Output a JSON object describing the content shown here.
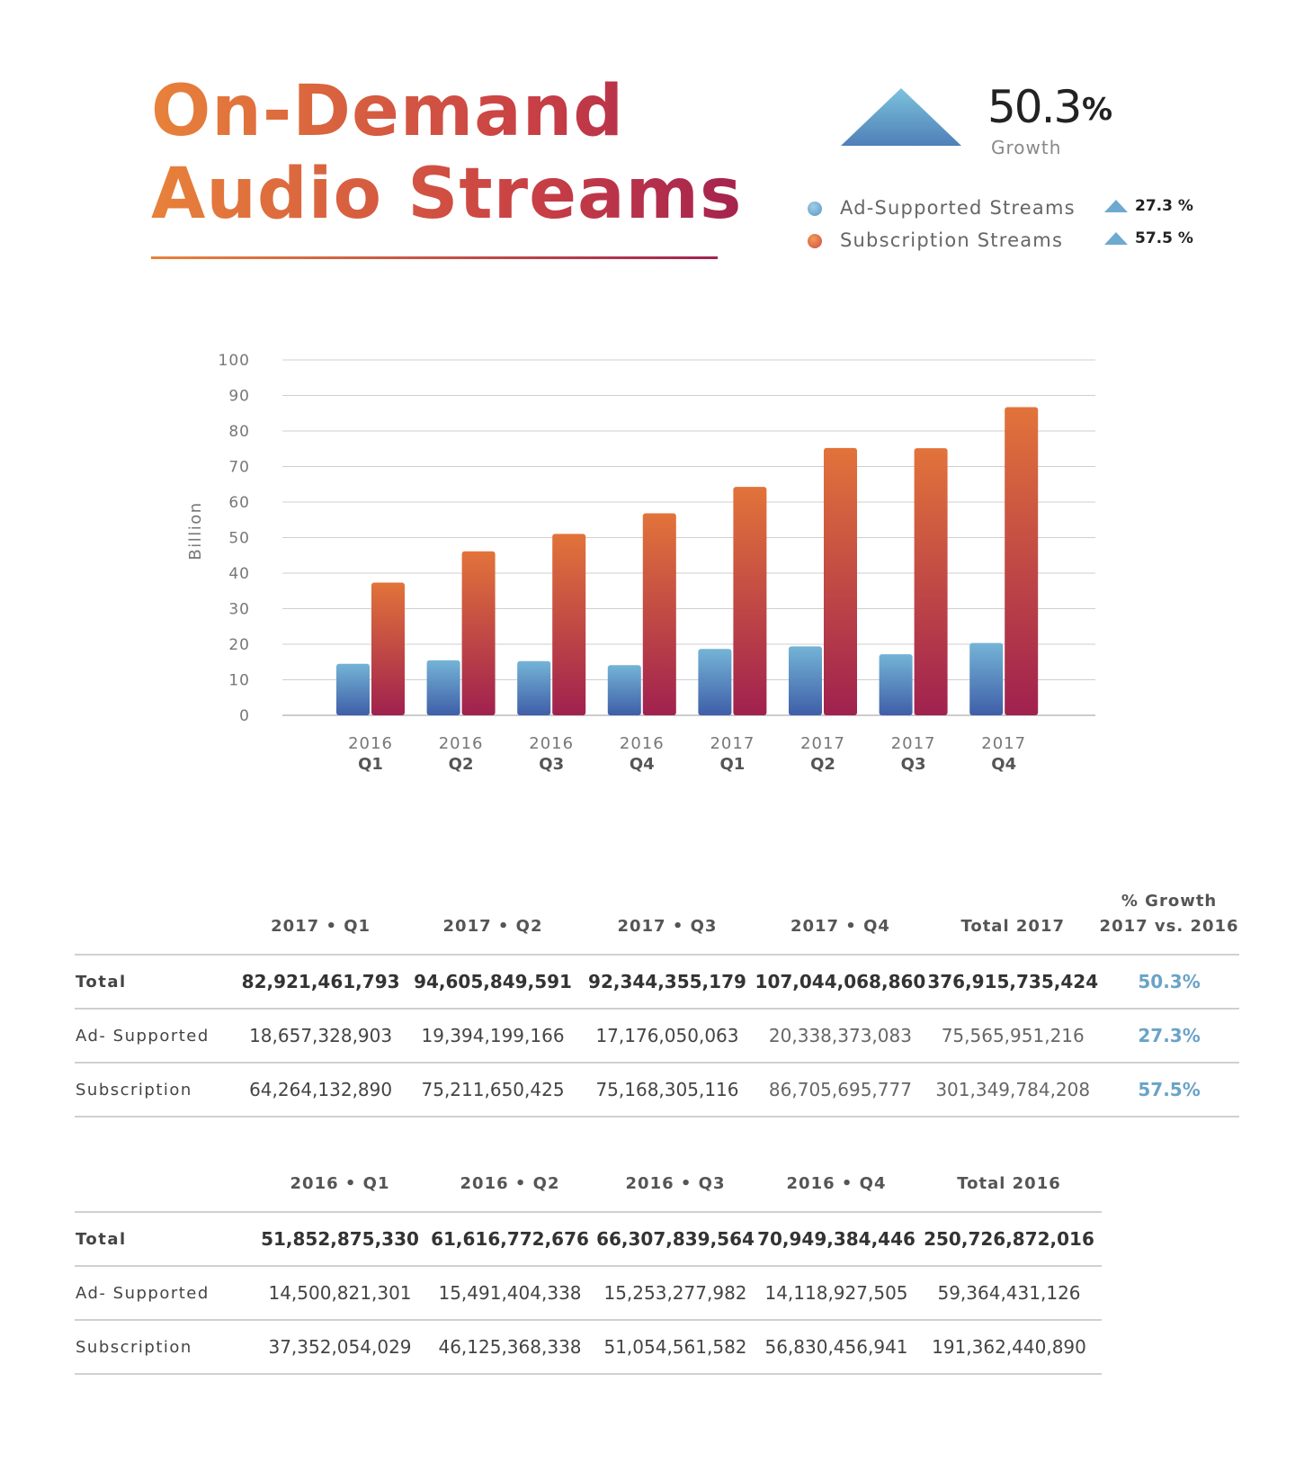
{
  "title": {
    "line1": "On-Demand",
    "line2": "Audio Streams"
  },
  "headline": {
    "value": "50.3",
    "unit": "%",
    "label": "Growth"
  },
  "legend": [
    {
      "label": "Ad-Supported Streams",
      "change": "27.3 %",
      "color": "#6ea9cf"
    },
    {
      "label": "Subscription Streams",
      "change": "57.5 %",
      "color": "#e06a3a"
    }
  ],
  "chart_data": {
    "type": "bar",
    "ylabel": "Billion",
    "ylim": [
      0,
      100
    ],
    "yticks": [
      0,
      10,
      20,
      30,
      40,
      50,
      60,
      70,
      80,
      90,
      100
    ],
    "grid": true,
    "categories": [
      {
        "year": "2016",
        "quarter": "Q1"
      },
      {
        "year": "2016",
        "quarter": "Q2"
      },
      {
        "year": "2016",
        "quarter": "Q3"
      },
      {
        "year": "2016",
        "quarter": "Q4"
      },
      {
        "year": "2017",
        "quarter": "Q1"
      },
      {
        "year": "2017",
        "quarter": "Q2"
      },
      {
        "year": "2017",
        "quarter": "Q3"
      },
      {
        "year": "2017",
        "quarter": "Q4"
      }
    ],
    "series": [
      {
        "name": "Ad-Supported Streams",
        "values": [
          14.5,
          15.49,
          15.25,
          14.12,
          18.66,
          19.39,
          17.18,
          20.34
        ]
      },
      {
        "name": "Subscription Streams",
        "values": [
          37.35,
          46.13,
          51.05,
          56.83,
          64.26,
          75.21,
          75.17,
          86.71
        ]
      }
    ]
  },
  "table_2017": {
    "headers": [
      "",
      "2017 • Q1",
      "2017 • Q2",
      "2017 • Q3",
      "2017 • Q4",
      "Total 2017",
      "% Growth\n2017 vs. 2016"
    ],
    "rows": [
      {
        "label": "Total",
        "cells": [
          "82,921,461,793",
          "94,605,849,591",
          "92,344,355,179",
          "107,044,068,860",
          "376,915,735,424"
        ],
        "growth": "50.3%"
      },
      {
        "label": "Ad- Supported",
        "cells": [
          "18,657,328,903",
          "19,394,199,166",
          "17,176,050,063",
          "20,338,373,083",
          "75,565,951,216"
        ],
        "growth": "27.3%"
      },
      {
        "label": "Subscription",
        "cells": [
          "64,264,132,890",
          "75,211,650,425",
          "75,168,305,116",
          "86,705,695,777",
          "301,349,784,208"
        ],
        "growth": "57.5%"
      }
    ]
  },
  "table_2016": {
    "headers": [
      "",
      "2016 • Q1",
      "2016 • Q2",
      "2016 • Q3",
      "2016 • Q4",
      "Total 2016"
    ],
    "rows": [
      {
        "label": "Total",
        "cells": [
          "51,852,875,330",
          "61,616,772,676",
          "66,307,839,564",
          "70,949,384,446",
          "250,726,872,016"
        ]
      },
      {
        "label": "Ad- Supported",
        "cells": [
          "14,500,821,301",
          "15,491,404,338",
          "15,253,277,982",
          "14,118,927,505",
          "59,364,431,126"
        ]
      },
      {
        "label": "Subscription",
        "cells": [
          "37,352,054,029",
          "46,125,368,338",
          "51,054,561,582",
          "56,830,456,941",
          "191,362,440,890"
        ]
      }
    ]
  }
}
